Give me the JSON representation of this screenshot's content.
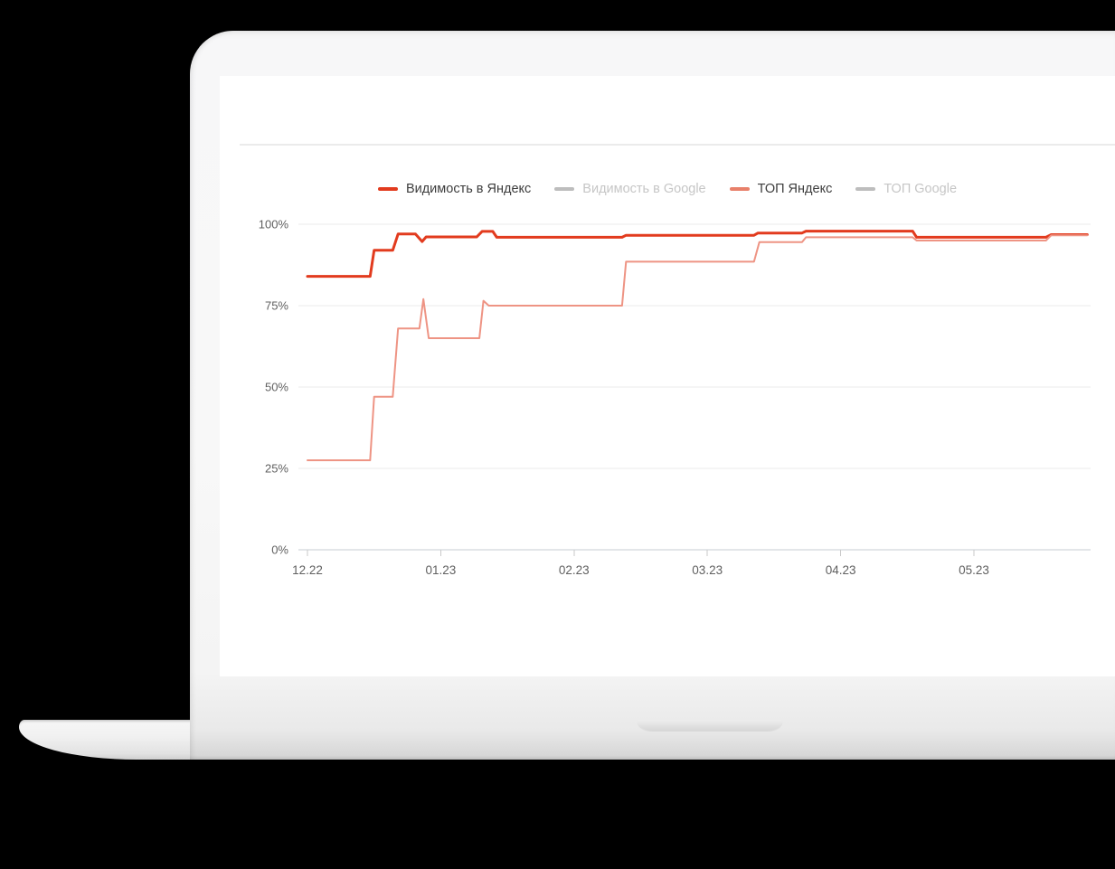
{
  "scene": {
    "background": "#000000",
    "laptop_color": "#f8f8f8",
    "screen_color": "#ffffff"
  },
  "chart_data": {
    "type": "line",
    "title": "",
    "xlabel": "",
    "ylabel": "",
    "x_unit": "month (MM.YY)",
    "x_ticks": [
      "12.22",
      "01.23",
      "02.23",
      "03.23",
      "04.23",
      "05.23"
    ],
    "y_ticks": [
      "100%",
      "75%",
      "50%",
      "25%",
      "0%"
    ],
    "y_tick_values": [
      100,
      75,
      50,
      25,
      0
    ],
    "ylim": [
      0,
      100
    ],
    "xlim_months": [
      0,
      5.88
    ],
    "grid": true,
    "legend_position": "top",
    "grid_color": "#ebebeb",
    "axis_color": "#c7ced3",
    "tick_color": "#c9c9c9",
    "label_color": "#606060",
    "series": [
      {
        "name": "Видимость в Яндекс",
        "color": "#e23b1e",
        "legend_color": "#e23b1e",
        "line_width": 3,
        "active": true,
        "points": [
          [
            0,
            84
          ],
          [
            0.47,
            84
          ],
          [
            0.5,
            92
          ],
          [
            0.64,
            92
          ],
          [
            0.68,
            97
          ],
          [
            0.81,
            97
          ],
          [
            0.86,
            94.7
          ],
          [
            0.89,
            96.1
          ],
          [
            1.27,
            96.1
          ],
          [
            1.31,
            97.8
          ],
          [
            1.39,
            97.8
          ],
          [
            1.42,
            96
          ],
          [
            2.36,
            96
          ],
          [
            2.39,
            96.6
          ],
          [
            3.35,
            96.6
          ],
          [
            3.38,
            97.3
          ],
          [
            3.71,
            97.3
          ],
          [
            3.74,
            97.9
          ],
          [
            4.54,
            97.9
          ],
          [
            4.57,
            96
          ],
          [
            5.54,
            96
          ],
          [
            5.58,
            96.8
          ],
          [
            5.85,
            96.8
          ]
        ]
      },
      {
        "name": "Видимость в Google",
        "color": "#bdbdbd",
        "legend_color": "#bdbdbd",
        "line_width": 2,
        "active": false,
        "points": []
      },
      {
        "name": "ТОП Яндекс",
        "color": "#ee9484",
        "legend_color": "#e8806a",
        "line_width": 2,
        "active": true,
        "points": [
          [
            0,
            27.5
          ],
          [
            0.47,
            27.5
          ],
          [
            0.5,
            47
          ],
          [
            0.64,
            47
          ],
          [
            0.68,
            68
          ],
          [
            0.84,
            68
          ],
          [
            0.87,
            77
          ],
          [
            0.91,
            65
          ],
          [
            1.29,
            65
          ],
          [
            1.32,
            76.5
          ],
          [
            1.36,
            75
          ],
          [
            2.36,
            75
          ],
          [
            2.39,
            88.5
          ],
          [
            3.35,
            88.5
          ],
          [
            3.39,
            94.5
          ],
          [
            3.71,
            94.5
          ],
          [
            3.74,
            96
          ],
          [
            4.54,
            96
          ],
          [
            4.57,
            95
          ],
          [
            5.54,
            95
          ],
          [
            5.58,
            96.6
          ],
          [
            5.85,
            96.6
          ]
        ]
      },
      {
        "name": "ТОП Google",
        "color": "#bdbdbd",
        "legend_color": "#bdbdbd",
        "line_width": 2,
        "active": false,
        "points": []
      }
    ]
  }
}
